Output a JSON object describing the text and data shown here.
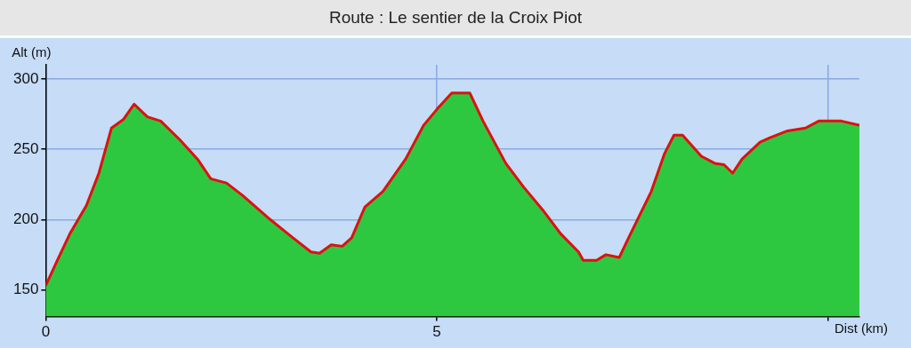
{
  "chart_data": {
    "type": "area",
    "title": "Route : Le sentier de la Croix Piot",
    "xlabel": "Dist (km)",
    "ylabel": "Alt (m)",
    "x": [
      0,
      0.14,
      0.31,
      0.52,
      0.68,
      0.84,
      0.99,
      1.13,
      1.3,
      1.47,
      1.71,
      1.94,
      2.11,
      2.31,
      2.52,
      2.87,
      3.16,
      3.39,
      3.5,
      3.65,
      3.79,
      3.91,
      4.08,
      4.31,
      4.6,
      4.83,
      5.01,
      5.19,
      5.42,
      5.59,
      5.88,
      6.11,
      6.35,
      6.58,
      6.81,
      6.87,
      7.04,
      7.16,
      7.33,
      7.45,
      7.74,
      7.91,
      8.03,
      8.14,
      8.38,
      8.55,
      8.67,
      8.78,
      8.9,
      9.13,
      9.25,
      9.48,
      9.71,
      9.88,
      10.17,
      10.4
    ],
    "series": [
      {
        "type": "area",
        "color": "#2ec840",
        "values": [
          153,
          170,
          190,
          210,
          233,
          265,
          271,
          282,
          273,
          270,
          257,
          243,
          229,
          226,
          217,
          200,
          187,
          177,
          176,
          182,
          181,
          187,
          209,
          220,
          243,
          267,
          279,
          290,
          290,
          270,
          240,
          223,
          207,
          190,
          177,
          171,
          171,
          175,
          173,
          187,
          220,
          247,
          260,
          260,
          245,
          240,
          239,
          233,
          243,
          255,
          258,
          263,
          265,
          270,
          270,
          267
        ]
      },
      {
        "type": "line",
        "color": "#e01010",
        "values": [
          153,
          170,
          190,
          210,
          233,
          265,
          271,
          282,
          273,
          270,
          257,
          243,
          229,
          226,
          217,
          200,
          187,
          177,
          176,
          182,
          181,
          187,
          209,
          220,
          243,
          267,
          279,
          290,
          290,
          270,
          240,
          223,
          207,
          190,
          177,
          171,
          171,
          175,
          173,
          187,
          220,
          247,
          260,
          260,
          245,
          240,
          239,
          233,
          243,
          255,
          258,
          263,
          265,
          270,
          270,
          267
        ]
      }
    ],
    "xlim": [
      0,
      10.4
    ],
    "xticks": [
      0,
      5,
      {
        "value": 10,
        "label": null
      }
    ],
    "ylim": [
      131,
      310
    ],
    "yticks": [
      150,
      200,
      250,
      300
    ],
    "grid": true,
    "legend": false,
    "marker": "none",
    "line_style": "solid"
  }
}
